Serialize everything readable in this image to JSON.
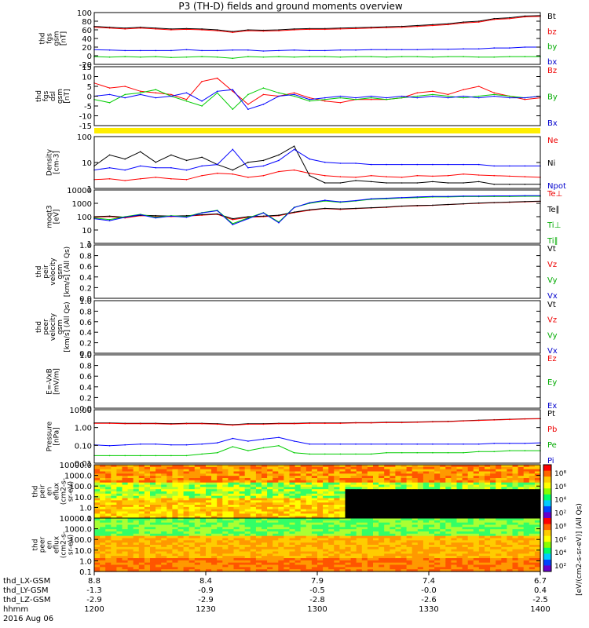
{
  "title": "P3 (TH-D) fields and ground moments overview",
  "chart_data": [
    {
      "type": "line",
      "ylabel": [
        "thd",
        "fgs",
        "gsm",
        "[nT]"
      ],
      "yticks": [
        "100",
        "80",
        "60",
        "40",
        "20",
        "0",
        "-20"
      ],
      "ylim": [
        -20,
        100
      ],
      "legend": [
        "Bt",
        "bz",
        "by",
        "bx"
      ],
      "series": [
        {
          "name": "Bt",
          "color": "#000000",
          "values": [
            68,
            66,
            64,
            66,
            64,
            62,
            63,
            62,
            60,
            56,
            60,
            59,
            60,
            62,
            63,
            63,
            64,
            65,
            66,
            67,
            68,
            70,
            72,
            74,
            78,
            80,
            86,
            88,
            92,
            93
          ]
        },
        {
          "name": "bz",
          "color": "#ff0000",
          "values": [
            66,
            64,
            62,
            64,
            62,
            60,
            61,
            60,
            58,
            54,
            58,
            57,
            58,
            60,
            61,
            61,
            62,
            63,
            64,
            65,
            66,
            68,
            70,
            72,
            76,
            78,
            84,
            86,
            90,
            91
          ]
        },
        {
          "name": "by",
          "color": "#0000ff",
          "values": [
            14,
            13,
            12,
            12,
            12,
            12,
            14,
            12,
            12,
            13,
            13,
            11,
            12,
            13,
            12,
            12,
            13,
            13,
            14,
            14,
            14,
            14,
            15,
            15,
            16,
            16,
            18,
            18,
            20,
            20
          ]
        },
        {
          "name": "bx",
          "color": "#00cc00",
          "values": [
            -2,
            -3,
            -2,
            -3,
            -2,
            -4,
            -3,
            -2,
            -3,
            -6,
            -2,
            -3,
            -2,
            -3,
            -2,
            -2,
            -3,
            -2,
            -2,
            -3,
            -2,
            -2,
            -3,
            -2,
            -2,
            -3,
            -3,
            -2,
            -2,
            -2
          ]
        }
      ]
    },
    {
      "type": "line",
      "ylabel": [
        "thd",
        "fgs",
        "dsl",
        "gsm",
        "[nT]"
      ],
      "yticks": [
        "15",
        "10",
        "5",
        "0",
        "-5",
        "-10",
        "-15"
      ],
      "ylim": [
        -18,
        18
      ],
      "legend": [
        "Bz",
        "By",
        "Bx"
      ],
      "series": [
        {
          "name": "Bz",
          "color": "#ff0000",
          "values": [
            8,
            5,
            6,
            3,
            2,
            1,
            -2,
            9,
            11,
            3,
            -5,
            1,
            0,
            2,
            -1,
            -3,
            -4,
            -2,
            -2,
            -2,
            -1,
            2,
            3,
            1,
            4,
            6,
            2,
            0,
            -2,
            -1
          ]
        },
        {
          "name": "By",
          "color": "#00cc00",
          "values": [
            -2,
            -4,
            1,
            2,
            4,
            0,
            -3,
            -6,
            2,
            -8,
            1,
            5,
            2,
            0,
            -3,
            -2,
            -1,
            -2,
            -1,
            -2,
            -1,
            0,
            1,
            0,
            -1,
            0,
            1,
            0,
            -1,
            0
          ]
        },
        {
          "name": "Bx",
          "color": "#0000ff",
          "values": [
            0,
            1,
            -1,
            1,
            -1,
            0,
            2,
            -3,
            3,
            4,
            -8,
            -5,
            0,
            1,
            -2,
            -1,
            0,
            -1,
            0,
            -1,
            0,
            -1,
            0,
            -1,
            0,
            -1,
            0,
            -1,
            -1,
            0
          ]
        }
      ]
    },
    {
      "type": "line",
      "scale": "log",
      "ylabel": [
        "Density",
        "[cm-3]"
      ],
      "yticks": [
        "100",
        "10",
        "1"
      ],
      "ylim": [
        0.3,
        200
      ],
      "legend": [
        "Ne",
        "Ni",
        "Npot"
      ],
      "series": [
        {
          "name": "Ne",
          "color": "#ff0000",
          "values": [
            0.9,
            1.0,
            0.8,
            1.0,
            1.2,
            1.0,
            0.9,
            1.5,
            2,
            1.8,
            1.2,
            1.5,
            2.5,
            3,
            2,
            1.5,
            1.3,
            1.2,
            1.5,
            1.3,
            1.2,
            1.5,
            1.4,
            1.5,
            1.8,
            1.6,
            1.5,
            1.4,
            1.3,
            1.2
          ]
        },
        {
          "name": "Ni",
          "color": "#000000",
          "values": [
            5,
            20,
            12,
            30,
            8,
            20,
            10,
            15,
            6,
            3,
            8,
            10,
            20,
            60,
            1.5,
            0.6,
            0.6,
            0.8,
            0.7,
            0.6,
            0.6,
            0.6,
            0.7,
            0.6,
            0.6,
            0.7,
            0.5,
            0.5,
            0.5,
            0.5
          ]
        },
        {
          "name": "Npot",
          "color": "#0000ff",
          "values": [
            3,
            4,
            3,
            5,
            4,
            4,
            3,
            5,
            6,
            40,
            4,
            5,
            10,
            40,
            12,
            8,
            7,
            7,
            6,
            6,
            6,
            6,
            6,
            6,
            6,
            6,
            5,
            5,
            5,
            5
          ]
        }
      ]
    },
    {
      "type": "line",
      "scale": "log",
      "ylabel": [
        "moqt3",
        "[eV]"
      ],
      "yticks": [
        "10000",
        "1000",
        "100",
        "10",
        "1"
      ],
      "ylim": [
        1,
        10000
      ],
      "legend": [
        "Te⊥",
        "Te∥",
        "Ti⊥",
        "Ti∥"
      ],
      "series": [
        {
          "name": "Te⊥",
          "color": "#ff0000",
          "values": [
            90,
            100,
            80,
            120,
            110,
            100,
            110,
            130,
            150,
            60,
            90,
            100,
            120,
            200,
            300,
            400,
            350,
            400,
            450,
            500,
            600,
            650,
            700,
            800,
            900,
            1000,
            1100,
            1200,
            1300,
            1400
          ]
        },
        {
          "name": "Te∥",
          "color": "#000000",
          "values": [
            100,
            110,
            90,
            130,
            120,
            110,
            120,
            140,
            160,
            70,
            100,
            110,
            130,
            220,
            330,
            420,
            380,
            420,
            470,
            520,
            620,
            680,
            720,
            820,
            920,
            1050,
            1150,
            1250,
            1350,
            1450
          ]
        },
        {
          "name": "Ti⊥",
          "color": "#00cc00",
          "values": [
            80,
            60,
            100,
            150,
            90,
            120,
            100,
            200,
            300,
            30,
            80,
            200,
            40,
            500,
            1000,
            1500,
            1200,
            1500,
            2000,
            2200,
            2500,
            2700,
            3000,
            3000,
            3200,
            3200,
            3300,
            3300,
            3400,
            3400
          ]
        },
        {
          "name": "Ti∥",
          "color": "#0000ff",
          "values": [
            70,
            50,
            90,
            140,
            80,
            110,
            90,
            190,
            280,
            25,
            70,
            190,
            35,
            480,
            1100,
            1700,
            1300,
            1600,
            2200,
            2400,
            2700,
            3000,
            3300,
            3300,
            3500,
            3500,
            3600,
            3600,
            3700,
            3700
          ]
        }
      ]
    },
    {
      "type": "line",
      "ylabel": [
        "thd",
        "peir",
        "velocity",
        "gsm",
        "[km/s] (All Qs)"
      ],
      "yticks": [
        "1.0",
        "0.8",
        "0.6",
        "0.4",
        "0.2",
        "0.0"
      ],
      "ylim": [
        0,
        1
      ],
      "legend": [
        "Vt",
        "Vz",
        "Vy",
        "Vx"
      ],
      "series": []
    },
    {
      "type": "line",
      "ylabel": [
        "thd",
        "peer",
        "velocity",
        "gsm",
        "[km/s] (All Qs)"
      ],
      "yticks": [
        "1.0",
        "0.8",
        "0.6",
        "0.4",
        "0.2",
        "0.0"
      ],
      "ylim": [
        0,
        1
      ],
      "legend": [
        "Vt",
        "Vz",
        "Vy",
        "Vx"
      ],
      "series": []
    },
    {
      "type": "line",
      "ylabel": [
        "E=-VxB",
        "[mV/m]"
      ],
      "yticks": [
        "1.0",
        "0.8",
        "0.6",
        "0.4",
        "0.2",
        "0.0"
      ],
      "ylim": [
        0,
        1
      ],
      "legend": [
        "Ez",
        "Ey",
        "Ex"
      ],
      "series": []
    },
    {
      "type": "line",
      "scale": "log",
      "ylabel": [
        "Pressure",
        "[nPa]"
      ],
      "yticks": [
        "10.00",
        "1.00",
        "0.10",
        "0.01"
      ],
      "ylim": [
        0.007,
        12
      ],
      "legend": [
        "Pt",
        "Pb",
        "Pe",
        "Pi"
      ],
      "series": [
        {
          "name": "Pt",
          "color": "#000000",
          "values": [
            1.9,
            1.9,
            1.8,
            1.8,
            1.8,
            1.7,
            1.8,
            1.8,
            1.7,
            1.5,
            1.7,
            1.7,
            1.8,
            1.8,
            1.9,
            1.9,
            1.9,
            2.0,
            2.0,
            2.1,
            2.1,
            2.2,
            2.3,
            2.4,
            2.6,
            2.8,
            3.0,
            3.2,
            3.4,
            3.5
          ]
        },
        {
          "name": "Pb",
          "color": "#ff0000",
          "values": [
            1.8,
            1.8,
            1.7,
            1.7,
            1.7,
            1.6,
            1.7,
            1.7,
            1.6,
            1.4,
            1.6,
            1.6,
            1.7,
            1.7,
            1.8,
            1.8,
            1.8,
            1.9,
            1.9,
            2.0,
            2.0,
            2.1,
            2.2,
            2.3,
            2.5,
            2.7,
            2.9,
            3.1,
            3.3,
            3.4
          ]
        },
        {
          "name": "Pe",
          "color": "#0000ff",
          "values": [
            0.09,
            0.08,
            0.09,
            0.1,
            0.1,
            0.09,
            0.09,
            0.1,
            0.12,
            0.22,
            0.15,
            0.2,
            0.25,
            0.15,
            0.1,
            0.1,
            0.1,
            0.1,
            0.1,
            0.1,
            0.1,
            0.1,
            0.1,
            0.1,
            0.1,
            0.1,
            0.11,
            0.11,
            0.11,
            0.12
          ]
        },
        {
          "name": "Pi",
          "color": "#00cc00",
          "values": [
            0.02,
            0.02,
            0.02,
            0.02,
            0.02,
            0.02,
            0.02,
            0.025,
            0.03,
            0.07,
            0.04,
            0.06,
            0.08,
            0.03,
            0.025,
            0.025,
            0.025,
            0.025,
            0.025,
            0.03,
            0.03,
            0.03,
            0.03,
            0.03,
            0.03,
            0.035,
            0.035,
            0.04,
            0.04,
            0.04
          ]
        }
      ]
    },
    {
      "type": "heatmap",
      "ylabel": [
        "thd",
        "peir",
        "en",
        "eflux",
        "(cm2-s-",
        "sr-eV)"
      ],
      "yticks": [
        "10000.0",
        "1000.0",
        "100.0",
        "10.0",
        "1.0",
        "0.1"
      ],
      "note": "ion energy flux spectrogram"
    },
    {
      "type": "heatmap",
      "ylabel": [
        "thd",
        "peer",
        "en",
        "eflux",
        "(cm2-s-",
        "sr-eV)"
      ],
      "yticks": [
        "10000.0",
        "1000.0",
        "100.0",
        "10.0",
        "1.0",
        "0.1"
      ],
      "note": "electron energy flux spectrogram"
    }
  ],
  "colorbar": {
    "label": "[eV/(cm2-s-sr-eV)] (All Qs)",
    "ticks": [
      "10⁸",
      "10⁶",
      "10⁴",
      "10²",
      "10⁸",
      "10⁶",
      "10⁴",
      "10²"
    ]
  },
  "xaxis": {
    "ticks": [
      {
        "lx": "8.8",
        "ly": "-1.3",
        "lz": "-2.9",
        "hhmm": "1200"
      },
      {
        "lx": "8.4",
        "ly": "-0.9",
        "lz": "-2.9",
        "hhmm": "1230"
      },
      {
        "lx": "7.9",
        "ly": "-0.5",
        "lz": "-2.8",
        "hhmm": "1300"
      },
      {
        "lx": "7.4",
        "ly": "-0.0",
        "lz": "-2.6",
        "hhmm": "1330"
      },
      {
        "lx": "6.7",
        "ly": "0.4",
        "lz": "-2.5",
        "hhmm": "1400"
      }
    ],
    "rows": [
      "thd_LX-GSM",
      "thd_LY-GSM",
      "thd_LZ-GSM",
      "hhmm"
    ],
    "date": "2016 Aug 06"
  }
}
